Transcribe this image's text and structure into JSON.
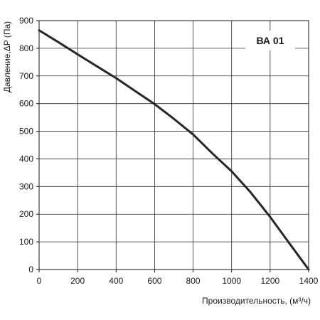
{
  "chart_data": {
    "type": "line",
    "title": "",
    "badge": "ВА 01",
    "xlabel": "Производительность, (м³/ч)",
    "ylabel": "Давление,ΔP (Па)",
    "xlim": [
      0,
      1400
    ],
    "ylim": [
      0,
      900
    ],
    "x_ticks": [
      0,
      200,
      400,
      600,
      800,
      1000,
      1200,
      1400
    ],
    "y_ticks": [
      0,
      100,
      200,
      300,
      400,
      500,
      600,
      700,
      800,
      900
    ],
    "grid": true,
    "series": [
      {
        "color": "#262626",
        "x": [
          0,
          100,
          200,
          300,
          400,
          500,
          600,
          700,
          800,
          900,
          1000,
          1100,
          1200,
          1300,
          1400
        ],
        "y": [
          865,
          822,
          778,
          735,
          692,
          645,
          598,
          545,
          488,
          420,
          355,
          278,
          190,
          95,
          0
        ]
      }
    ]
  }
}
